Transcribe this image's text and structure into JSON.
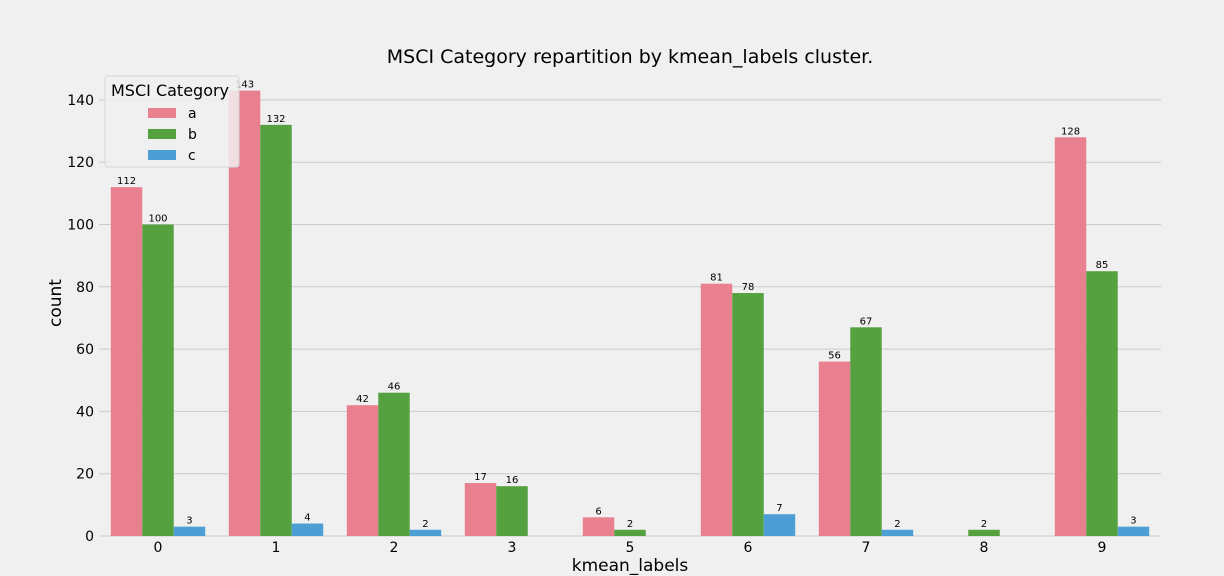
{
  "chart_data": {
    "type": "bar",
    "title": "MSCI Category repartition by kmean_labels cluster.",
    "xlabel": "kmean_labels",
    "ylabel": "count",
    "categories": [
      "0",
      "1",
      "2",
      "3",
      "5",
      "6",
      "7",
      "8",
      "9"
    ],
    "series": [
      {
        "name": "a",
        "color": "#e8808f",
        "values": [
          112,
          143,
          42,
          17,
          6,
          81,
          56,
          null,
          128
        ]
      },
      {
        "name": "b",
        "color": "#55a140",
        "values": [
          100,
          132,
          46,
          16,
          2,
          78,
          67,
          2,
          85
        ]
      },
      {
        "name": "c",
        "color": "#4e9ed6",
        "values": [
          3,
          4,
          2,
          null,
          null,
          7,
          2,
          null,
          3
        ]
      }
    ],
    "ylim": [
      0,
      148
    ],
    "yticks": [
      0,
      20,
      40,
      60,
      80,
      100,
      120,
      140
    ],
    "grid": true,
    "legend": {
      "title": "MSCI Category",
      "placement": "top-left"
    },
    "data_labels": true
  }
}
